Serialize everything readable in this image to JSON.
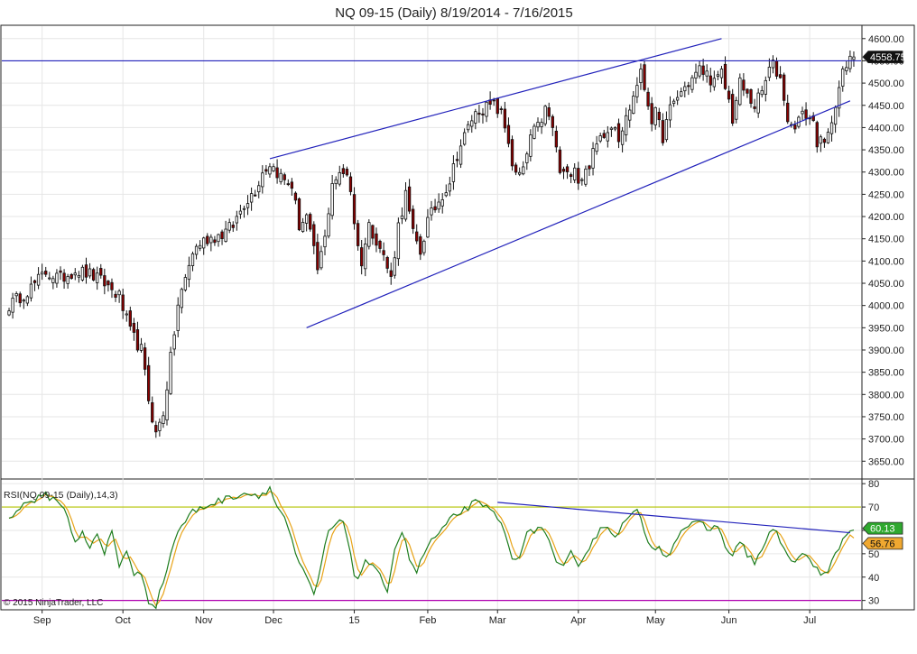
{
  "title": "NQ 09-15 (Daily)  8/19/2014 - 7/16/2015",
  "copyright": "© 2015 NinjaTrader, LLC",
  "chart_data": [
    {
      "type": "candlestick",
      "title": "NQ 09-15 (Daily)  8/19/2014 - 7/16/2015",
      "ylim": [
        3610,
        4630
      ],
      "y_ticks": [
        3650,
        3700,
        3750,
        3800,
        3850,
        3900,
        3950,
        4000,
        4050,
        4100,
        4150,
        4200,
        4250,
        4300,
        4350,
        4400,
        4450,
        4500,
        4550,
        4600
      ],
      "x_labels": [
        "Sep",
        "Oct",
        "Nov",
        "Dec",
        "15",
        "Feb",
        "Mar",
        "Apr",
        "May",
        "Jun",
        "Jul"
      ],
      "x_label_positions": [
        9,
        31,
        53,
        72,
        94,
        114,
        133,
        155,
        176,
        196,
        218
      ],
      "bar_count": 231,
      "last_price": "4558.75",
      "last_price_value": 4558.75,
      "up_color": "#ffffff",
      "down_color": "#8b0000",
      "anchors": [
        [
          0,
          4000
        ],
        [
          6,
          4040
        ],
        [
          10,
          4075
        ],
        [
          14,
          4060
        ],
        [
          18,
          4080
        ],
        [
          22,
          4070
        ],
        [
          26,
          4050
        ],
        [
          30,
          4020
        ],
        [
          33,
          3940
        ],
        [
          36,
          3900
        ],
        [
          38,
          3790
        ],
        [
          40,
          3710
        ],
        [
          42,
          3760
        ],
        [
          44,
          3880
        ],
        [
          46,
          4000
        ],
        [
          48,
          4060
        ],
        [
          50,
          4120
        ],
        [
          52,
          4140
        ],
        [
          54,
          4150
        ],
        [
          58,
          4160
        ],
        [
          61,
          4180
        ],
        [
          64,
          4230
        ],
        [
          67,
          4260
        ],
        [
          69,
          4300
        ],
        [
          71,
          4320
        ],
        [
          73,
          4300
        ],
        [
          75,
          4280
        ],
        [
          77,
          4270
        ],
        [
          79,
          4180
        ],
        [
          81,
          4200
        ],
        [
          83,
          4120
        ],
        [
          84,
          4080
        ],
        [
          86,
          4150
        ],
        [
          88,
          4280
        ],
        [
          90,
          4290
        ],
        [
          92,
          4300
        ],
        [
          93,
          4260
        ],
        [
          94,
          4190
        ],
        [
          95,
          4130
        ],
        [
          96,
          4100
        ],
        [
          98,
          4180
        ],
        [
          100,
          4150
        ],
        [
          102,
          4110
        ],
        [
          104,
          4060
        ],
        [
          106,
          4180
        ],
        [
          108,
          4250
        ],
        [
          110,
          4160
        ],
        [
          112,
          4120
        ],
        [
          114,
          4190
        ],
        [
          116,
          4220
        ],
        [
          118,
          4250
        ],
        [
          120,
          4280
        ],
        [
          122,
          4340
        ],
        [
          124,
          4380
        ],
        [
          126,
          4420
        ],
        [
          128,
          4440
        ],
        [
          130,
          4445
        ],
        [
          132,
          4450
        ],
        [
          134,
          4430
        ],
        [
          136,
          4370
        ],
        [
          137,
          4320
        ],
        [
          138,
          4290
        ],
        [
          140,
          4300
        ],
        [
          142,
          4380
        ],
        [
          144,
          4400
        ],
        [
          146,
          4440
        ],
        [
          148,
          4400
        ],
        [
          150,
          4300
        ],
        [
          152,
          4290
        ],
        [
          154,
          4320
        ],
        [
          155,
          4280
        ],
        [
          157,
          4300
        ],
        [
          159,
          4340
        ],
        [
          161,
          4380
        ],
        [
          163,
          4400
        ],
        [
          165,
          4410
        ],
        [
          166,
          4380
        ],
        [
          168,
          4420
        ],
        [
          170,
          4470
        ],
        [
          171,
          4500
        ],
        [
          172,
          4520
        ],
        [
          173,
          4490
        ],
        [
          175,
          4420
        ],
        [
          176,
          4430
        ],
        [
          178,
          4380
        ],
        [
          180,
          4440
        ],
        [
          182,
          4470
        ],
        [
          184,
          4490
        ],
        [
          186,
          4510
        ],
        [
          188,
          4530
        ],
        [
          190,
          4520
        ],
        [
          192,
          4500
        ],
        [
          194,
          4520
        ],
        [
          196,
          4460
        ],
        [
          197,
          4420
        ],
        [
          199,
          4500
        ],
        [
          201,
          4470
        ],
        [
          203,
          4450
        ],
        [
          205,
          4480
        ],
        [
          207,
          4530
        ],
        [
          208,
          4540
        ],
        [
          210,
          4510
        ],
        [
          211,
          4470
        ],
        [
          212,
          4420
        ],
        [
          213,
          4400
        ],
        [
          215,
          4420
        ],
        [
          217,
          4430
        ],
        [
          219,
          4410
        ],
        [
          220,
          4370
        ],
        [
          222,
          4360
        ],
        [
          223,
          4380
        ],
        [
          225,
          4460
        ],
        [
          227,
          4520
        ],
        [
          229,
          4550
        ],
        [
          230,
          4558.75
        ]
      ],
      "trendlines": [
        {
          "name": "upper-channel",
          "points": [
            [
              71,
              4330
            ],
            [
              194,
              4600
            ]
          ]
        },
        {
          "name": "lower-channel",
          "points": [
            [
              81,
              3950
            ],
            [
              229,
              4460
            ]
          ]
        },
        {
          "name": "resistance-line",
          "points": [
            [
              0,
              4550
            ],
            [
              231,
              4550
            ]
          ]
        }
      ]
    },
    {
      "type": "line",
      "title": "RSI(NQ 09-15 (Daily),14,3)",
      "ylim": [
        26,
        82
      ],
      "y_ticks": [
        30,
        40,
        50,
        60,
        70,
        80
      ],
      "overbought": 70,
      "oversold": 30,
      "last_values": [
        "60.13",
        "56.76"
      ],
      "anchors": [
        [
          0,
          66
        ],
        [
          5,
          72
        ],
        [
          10,
          75
        ],
        [
          14,
          72
        ],
        [
          16,
          65
        ],
        [
          18,
          55
        ],
        [
          20,
          60
        ],
        [
          22,
          52
        ],
        [
          24,
          58
        ],
        [
          26,
          50
        ],
        [
          28,
          60
        ],
        [
          30,
          45
        ],
        [
          32,
          52
        ],
        [
          34,
          40
        ],
        [
          36,
          42
        ],
        [
          38,
          30
        ],
        [
          40,
          28
        ],
        [
          42,
          38
        ],
        [
          44,
          50
        ],
        [
          46,
          60
        ],
        [
          48,
          64
        ],
        [
          50,
          68
        ],
        [
          53,
          70
        ],
        [
          56,
          72
        ],
        [
          60,
          74
        ],
        [
          64,
          76
        ],
        [
          68,
          75
        ],
        [
          71,
          78
        ],
        [
          73,
          70
        ],
        [
          75,
          66
        ],
        [
          77,
          55
        ],
        [
          79,
          45
        ],
        [
          81,
          40
        ],
        [
          83,
          32
        ],
        [
          85,
          45
        ],
        [
          87,
          60
        ],
        [
          89,
          62
        ],
        [
          91,
          64
        ],
        [
          92,
          58
        ],
        [
          93,
          50
        ],
        [
          94,
          42
        ],
        [
          95,
          38
        ],
        [
          97,
          48
        ],
        [
          99,
          44
        ],
        [
          101,
          40
        ],
        [
          103,
          35
        ],
        [
          105,
          52
        ],
        [
          107,
          60
        ],
        [
          109,
          48
        ],
        [
          111,
          42
        ],
        [
          113,
          50
        ],
        [
          115,
          56
        ],
        [
          117,
          58
        ],
        [
          119,
          62
        ],
        [
          121,
          66
        ],
        [
          123,
          68
        ],
        [
          125,
          70
        ],
        [
          127,
          72
        ],
        [
          129,
          70
        ],
        [
          131,
          69
        ],
        [
          133,
          66
        ],
        [
          135,
          58
        ],
        [
          137,
          48
        ],
        [
          139,
          50
        ],
        [
          141,
          58
        ],
        [
          143,
          60
        ],
        [
          145,
          62
        ],
        [
          147,
          55
        ],
        [
          149,
          45
        ],
        [
          151,
          44
        ],
        [
          153,
          50
        ],
        [
          155,
          46
        ],
        [
          157,
          50
        ],
        [
          159,
          56
        ],
        [
          161,
          60
        ],
        [
          163,
          62
        ],
        [
          165,
          58
        ],
        [
          167,
          62
        ],
        [
          169,
          66
        ],
        [
          171,
          68
        ],
        [
          173,
          60
        ],
        [
          175,
          52
        ],
        [
          177,
          54
        ],
        [
          179,
          48
        ],
        [
          181,
          55
        ],
        [
          183,
          60
        ],
        [
          185,
          62
        ],
        [
          187,
          63
        ],
        [
          189,
          62
        ],
        [
          191,
          60
        ],
        [
          193,
          62
        ],
        [
          195,
          54
        ],
        [
          197,
          48
        ],
        [
          199,
          56
        ],
        [
          201,
          50
        ],
        [
          203,
          46
        ],
        [
          205,
          52
        ],
        [
          207,
          58
        ],
        [
          209,
          60
        ],
        [
          211,
          52
        ],
        [
          213,
          46
        ],
        [
          215,
          48
        ],
        [
          217,
          50
        ],
        [
          219,
          46
        ],
        [
          221,
          40
        ],
        [
          223,
          42
        ],
        [
          225,
          50
        ],
        [
          227,
          56
        ],
        [
          229,
          60
        ],
        [
          230,
          60.13
        ]
      ],
      "series": [
        {
          "name": "RSI",
          "color": "#1e7d1e"
        },
        {
          "name": "Avg",
          "color": "#e8a317"
        }
      ],
      "trendlines": [
        {
          "name": "rsi-resistance",
          "points": [
            [
              133,
              72
            ],
            [
              229,
              59
            ]
          ]
        }
      ]
    }
  ],
  "colors": {
    "trendline": "#2222bb",
    "overbought_line": "#b5c400",
    "oversold_line": "#b000b0",
    "grid": "#e6e6e6",
    "axis_text": "#222222"
  }
}
